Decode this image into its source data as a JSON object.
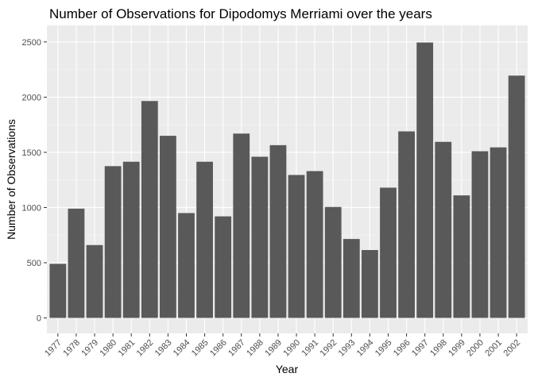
{
  "chart_data": {
    "type": "bar",
    "title": "Number of Observations for Dipodomys Merriami over the years",
    "xlabel": "Year",
    "ylabel": "Number of Observations",
    "categories": [
      "1977",
      "1978",
      "1979",
      "1980",
      "1981",
      "1982",
      "1983",
      "1984",
      "1985",
      "1986",
      "1987",
      "1988",
      "1989",
      "1990",
      "1991",
      "1992",
      "1993",
      "1994",
      "1995",
      "1996",
      "1997",
      "1998",
      "1999",
      "2000",
      "2001",
      "2002"
    ],
    "values": [
      490,
      990,
      660,
      1375,
      1415,
      1965,
      1650,
      950,
      1415,
      920,
      1670,
      1460,
      1565,
      1295,
      1330,
      1005,
      715,
      615,
      1180,
      1690,
      2495,
      1595,
      1110,
      1510,
      1545,
      2195
    ],
    "ylim": [
      -140,
      2650
    ],
    "yticks": [
      0,
      500,
      1000,
      1500,
      2000,
      2500
    ],
    "grid": true,
    "legend": "none",
    "colors": {
      "bar": "#595959",
      "panel": "#ebebeb",
      "grid_major": "#ffffff",
      "grid_minor": "#f5f5f5"
    }
  }
}
